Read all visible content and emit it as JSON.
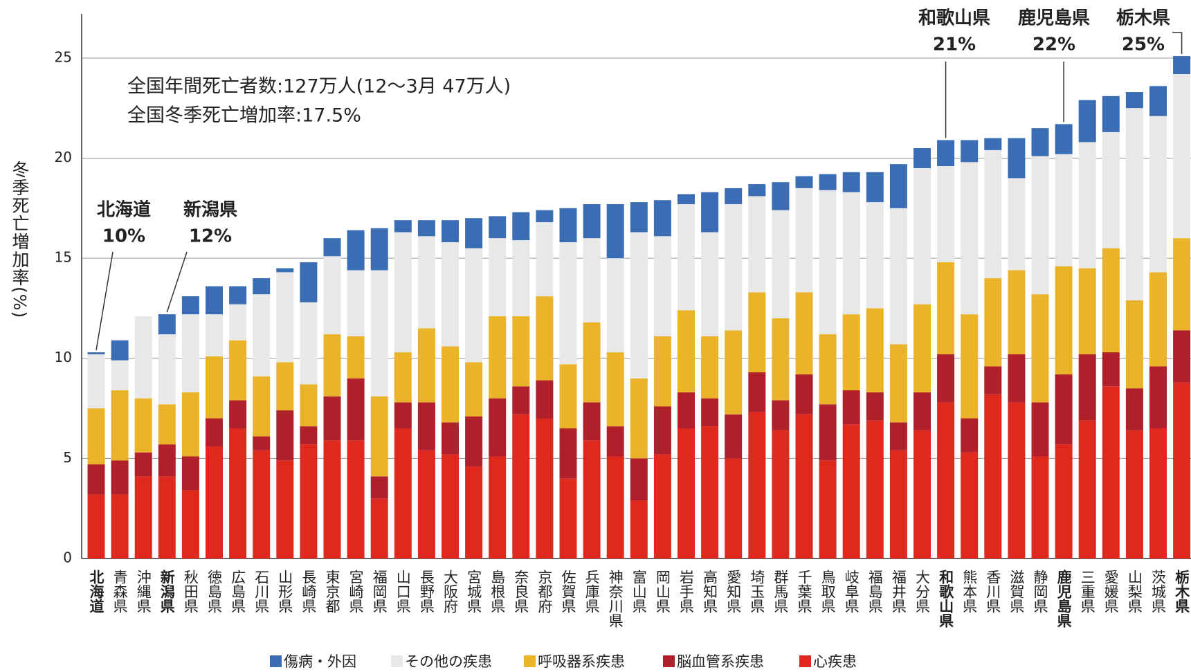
{
  "chart_data": {
    "type": "stacked_bar",
    "notes": [
      "全国年間死亡者数:127万人(12〜3月 47万人)",
      "全国冬季死亡増加率:17.5%"
    ],
    "y_label": "冬季死亡増加率(%)",
    "categories": [
      "北海道",
      "青森県",
      "沖縄県",
      "新潟県",
      "秋田県",
      "徳島県",
      "広島県",
      "石川県",
      "山形県",
      "長崎県",
      "東京都",
      "宮崎県",
      "福岡県",
      "山口県",
      "長野県",
      "大阪府",
      "宮城県",
      "島根県",
      "奈良県",
      "京都府",
      "佐賀県",
      "兵庫県",
      "神奈川県",
      "富山県",
      "岡山県",
      "岩手県",
      "高知県",
      "愛知県",
      "埼玉県",
      "群馬県",
      "千葉県",
      "鳥取県",
      "岐阜県",
      "福島県",
      "福井県",
      "大分県",
      "和歌山県",
      "熊本県",
      "香川県",
      "滋賀県",
      "静岡県",
      "鹿児島県",
      "三重県",
      "愛媛県",
      "山梨県",
      "茨城県",
      "栃木県"
    ],
    "series": [
      {
        "name": "心疾患",
        "color": "#e0291e",
        "values": [
          3.2,
          3.2,
          4.1,
          4.1,
          3.4,
          5.6,
          6.5,
          5.4,
          4.9,
          5.7,
          5.9,
          5.9,
          3.0,
          6.5,
          5.4,
          5.2,
          4.6,
          5.1,
          7.2,
          7.0,
          4.0,
          5.9,
          5.1,
          2.9,
          5.2,
          6.5,
          6.6,
          5.0,
          7.3,
          6.4,
          7.2,
          4.9,
          6.7,
          6.9,
          5.4,
          6.4,
          7.8,
          5.3,
          8.2,
          7.8,
          5.1,
          5.7,
          6.9,
          8.6,
          6.4,
          6.5,
          8.8
        ]
      },
      {
        "name": "脳血管系疾患",
        "color": "#b0202a",
        "values": [
          1.5,
          1.7,
          1.2,
          1.6,
          1.7,
          1.4,
          1.4,
          0.7,
          2.5,
          0.9,
          2.2,
          3.1,
          1.1,
          1.3,
          2.4,
          1.6,
          2.5,
          2.9,
          1.4,
          1.9,
          2.5,
          1.9,
          1.5,
          2.1,
          2.4,
          1.8,
          1.4,
          2.2,
          2.0,
          1.5,
          2.0,
          2.8,
          1.7,
          1.4,
          1.4,
          1.9,
          2.4,
          1.7,
          1.4,
          2.4,
          2.7,
          3.5,
          3.3,
          1.7,
          2.1,
          3.1,
          2.6
        ]
      },
      {
        "name": "呼吸器系疾患",
        "color": "#ebb32a",
        "values": [
          2.8,
          3.5,
          2.7,
          2.0,
          3.2,
          3.1,
          3.0,
          3.0,
          2.4,
          2.1,
          3.1,
          2.1,
          4.0,
          2.5,
          3.7,
          3.8,
          2.7,
          4.1,
          3.5,
          4.2,
          3.2,
          4.0,
          3.7,
          4.0,
          3.5,
          4.1,
          3.1,
          4.2,
          4.0,
          4.1,
          4.1,
          3.5,
          3.8,
          4.2,
          3.9,
          4.4,
          4.6,
          5.2,
          4.4,
          4.2,
          5.4,
          5.4,
          4.3,
          5.2,
          4.4,
          4.7,
          4.6
        ]
      },
      {
        "name": "その他の疾患",
        "color": "#e8e8e8",
        "values": [
          2.7,
          1.5,
          4.1,
          3.5,
          3.9,
          2.1,
          1.8,
          4.1,
          4.5,
          4.1,
          3.9,
          3.3,
          6.3,
          6.0,
          4.6,
          5.2,
          5.7,
          3.9,
          3.8,
          3.7,
          6.1,
          4.2,
          4.7,
          7.3,
          5.0,
          5.3,
          5.2,
          6.3,
          4.8,
          5.4,
          5.2,
          7.2,
          6.1,
          5.3,
          6.8,
          6.8,
          4.8,
          7.6,
          6.4,
          4.6,
          6.9,
          5.6,
          6.3,
          5.8,
          9.6,
          7.8,
          8.2
        ]
      },
      {
        "name": "傷病・外因",
        "color": "#3a6db3",
        "values": [
          0.1,
          1.0,
          0,
          1.0,
          0.9,
          1.4,
          0.9,
          0.8,
          0.2,
          2.0,
          0.9,
          2.0,
          2.1,
          0.6,
          0.8,
          1.1,
          1.5,
          1.1,
          1.4,
          0.6,
          1.7,
          1.7,
          2.7,
          1.5,
          1.8,
          0.5,
          2.0,
          0.8,
          0.6,
          1.4,
          0.6,
          0.8,
          1.0,
          1.5,
          2.2,
          1.0,
          1.3,
          1.1,
          0.6,
          2.0,
          1.4,
          1.5,
          2.1,
          1.8,
          0.8,
          1.5,
          0.9
        ]
      }
    ],
    "annotations": [
      {
        "name": "北海道",
        "label": "10%"
      },
      {
        "name": "新潟県",
        "label": "12%"
      },
      {
        "name": "和歌山県",
        "label": "21%"
      },
      {
        "name": "鹿児島県",
        "label": "22%"
      },
      {
        "name": "栃木県",
        "label": "25%"
      }
    ],
    "ylim": [
      0,
      27
    ],
    "yticks": [
      0,
      5,
      10,
      15,
      20,
      25
    ],
    "grid": true
  }
}
